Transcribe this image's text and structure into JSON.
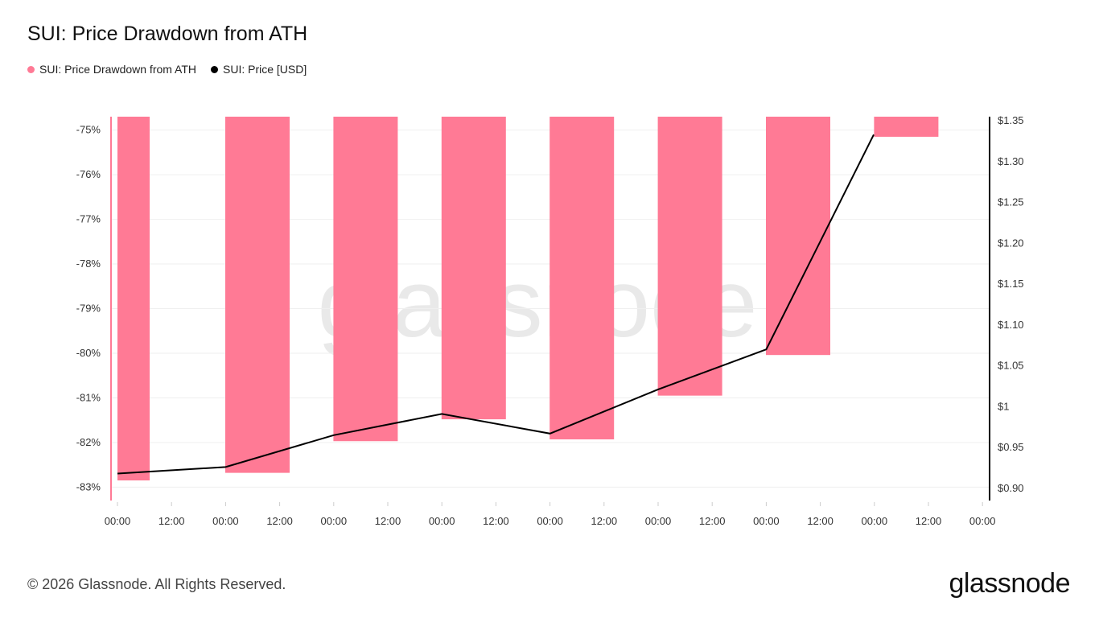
{
  "title": "SUI: Price Drawdown from ATH",
  "legend": [
    {
      "label": "SUI: Price Drawdown from ATH",
      "color": "#ff7a95"
    },
    {
      "label": "SUI: Price [USD]",
      "color": "#000000"
    }
  ],
  "footer": "© 2026 Glassnode. All Rights Reserved.",
  "brand": "glassnode",
  "watermark": "glassnode",
  "chart_data": {
    "type": "bar",
    "x_tick_labels": [
      "00:00",
      "12:00",
      "00:00",
      "12:00",
      "00:00",
      "12:00",
      "00:00",
      "12:00",
      "00:00",
      "12:00",
      "00:00",
      "12:00",
      "00:00",
      "12:00",
      "00:00",
      "12:00",
      "00:00"
    ],
    "categories_day_index": [
      0,
      1,
      2,
      3,
      4,
      5,
      6,
      7
    ],
    "series": [
      {
        "name": "SUI: Price Drawdown from ATH",
        "type": "bar",
        "axis": "left",
        "color": "#ff7a95",
        "values": [
          -82.85,
          -82.68,
          -81.97,
          -81.48,
          -81.93,
          -80.95,
          -80.04,
          -75.15
        ]
      },
      {
        "name": "SUI: Price [USD]",
        "type": "line",
        "axis": "right",
        "color": "#000000",
        "values": [
          0.918,
          0.926,
          0.965,
          0.991,
          0.967,
          1.021,
          1.07,
          1.333
        ]
      }
    ],
    "y_left": {
      "ticks": [
        -75,
        -76,
        -77,
        -78,
        -79,
        -80,
        -81,
        -82,
        -83
      ],
      "tick_labels": [
        "-75%",
        "-76%",
        "-77%",
        "-78%",
        "-79%",
        "-80%",
        "-81%",
        "-82%",
        "-83%"
      ],
      "ylim": [
        -83.3,
        -74.7
      ]
    },
    "y_right": {
      "ticks": [
        0.9,
        0.95,
        1.0,
        1.05,
        1.1,
        1.15,
        1.2,
        1.25,
        1.3,
        1.35
      ],
      "tick_labels": [
        "$0.90",
        "$0.95",
        "$1",
        "$1.05",
        "$1.10",
        "$1.15",
        "$1.20",
        "$1.25",
        "$1.30",
        "$1.35"
      ],
      "ylim": [
        0.885,
        1.355
      ]
    },
    "grid": true
  }
}
